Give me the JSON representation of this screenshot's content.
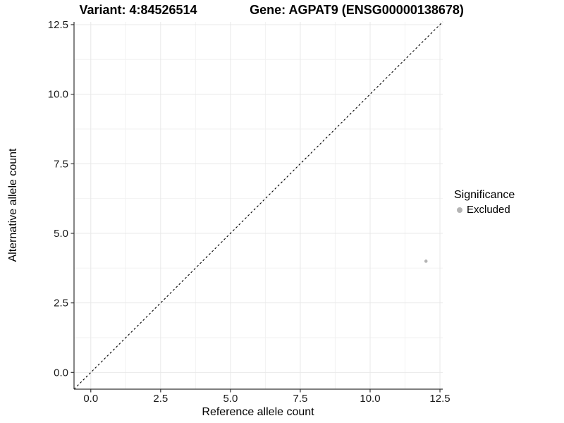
{
  "title": {
    "variant": "Variant: 4:84526514",
    "gene": "Gene: AGPAT9 (ENSG00000138678)"
  },
  "legend": {
    "title": "Significance",
    "items": [
      {
        "label": "Excluded",
        "color": "#b4b4b4"
      }
    ]
  },
  "chart_data": {
    "type": "scatter",
    "title": "Variant: 4:84526514   Gene: AGPAT9 (ENSG00000138678)",
    "xlabel": "Reference allele count",
    "ylabel": "Alternative allele count",
    "xlim": [
      -0.6,
      12.6
    ],
    "ylim": [
      -0.6,
      12.6
    ],
    "x_ticks": [
      0,
      2.5,
      5,
      7.5,
      10,
      12.5
    ],
    "y_ticks": [
      0,
      2.5,
      5,
      7.5,
      10,
      12.5
    ],
    "tick_label_decimals": 1,
    "grid": true,
    "minor_grid": true,
    "legend_position": "right",
    "series": [
      {
        "name": "Excluded",
        "color": "#b4b4b4",
        "points": [
          [
            12,
            4
          ]
        ]
      }
    ],
    "identity_line": {
      "style": "dashed",
      "color": "#000000",
      "from": [
        -0.6,
        -0.6
      ],
      "to": [
        12.6,
        12.6
      ]
    },
    "colors": {
      "axis": "#333333",
      "grid_major": "#e8e8e8",
      "grid_minor": "#f2f2f2",
      "tick_text": "#1a1a1a",
      "background": "#ffffff"
    }
  }
}
